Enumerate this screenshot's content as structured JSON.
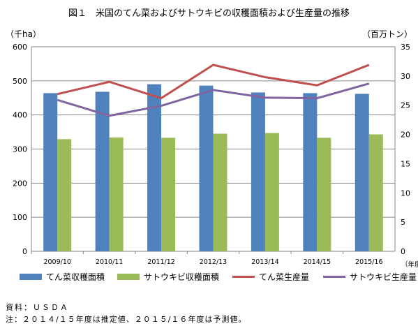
{
  "page": {
    "title": "図１　米国のてん菜およびサトウキビの収穫面積および生産量の推移",
    "source": "資料：ＵＳＤＡ",
    "note": "注：２０１４/１５年度は推定値、２０１５/１６年度は予測値。"
  },
  "chart_data": {
    "type": "bar",
    "categories": [
      "2009/10",
      "2010/11",
      "2011/12",
      "2012/13",
      "2013/14",
      "2014/15",
      "2015/16"
    ],
    "xlabel": "（年度）",
    "ylabel_left": "（千ha）",
    "ylabel_right": "（百万トン）",
    "ylim_left": [
      0,
      600
    ],
    "ylim_right": [
      0,
      35
    ],
    "yticks_left": [
      "0",
      "100",
      "200",
      "300",
      "400",
      "500",
      "600"
    ],
    "yticks_right": [
      "0",
      "5",
      "10",
      "15",
      "20",
      "25",
      "30",
      "35"
    ],
    "grid": true,
    "legend_position": "bottom",
    "series": [
      {
        "name": "てん菜収穫面積",
        "kind": "bar",
        "axis": "left",
        "color": "#4F81BD",
        "values": [
          464,
          468,
          490,
          486,
          466,
          464,
          462
        ]
      },
      {
        "name": "サトウキビ収穫面積",
        "kind": "bar",
        "axis": "left",
        "color": "#9BBB59",
        "values": [
          329,
          334,
          333,
          345,
          347,
          333,
          343
        ]
      },
      {
        "name": "てん菜生産量",
        "kind": "line",
        "axis": "right",
        "color": "#C0504D",
        "values": [
          26.9,
          29.0,
          26.2,
          31.9,
          29.8,
          28.4,
          31.9
        ]
      },
      {
        "name": "サトウキビ生産量",
        "kind": "line",
        "axis": "right",
        "color": "#8064A2",
        "values": [
          25.9,
          23.2,
          24.9,
          27.6,
          26.3,
          26.2,
          28.7
        ]
      }
    ]
  }
}
